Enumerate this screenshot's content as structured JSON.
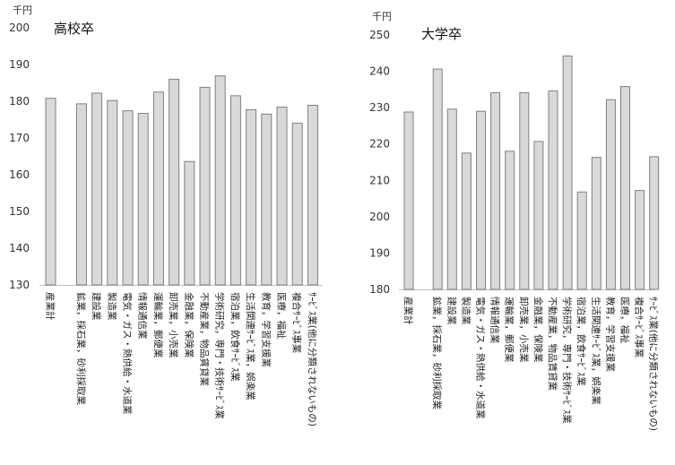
{
  "chart_data": [
    {
      "type": "bar",
      "title": "高校卒",
      "unit_label": "千円",
      "ylim": [
        130,
        200
      ],
      "yticks": [
        130,
        140,
        150,
        160,
        170,
        180,
        190,
        200
      ],
      "grid": false,
      "categories": [
        "産業計",
        "",
        "鉱業，採石業，砂利採取業",
        "建設業",
        "製造業",
        "電気・ガス・熱供給・水道業",
        "情報通信業",
        "運輸業，郵便業",
        "卸売業，小売業",
        "金融業，保険業",
        "不動産業，物品賃貸業",
        "学術研究，専門・技術ｻｰﾋﾞｽ業",
        "宿泊業，飲食ｻｰﾋﾞｽ業",
        "生活関連ｻｰﾋﾞｽ業，娯楽業",
        "教育，学習支援業",
        "医療，福祉",
        "複合ｻｰﾋﾞｽ事業",
        "ｻｰﾋﾞｽ業(他に分類されないもの)"
      ],
      "values": [
        180.8,
        null,
        179.3,
        182.2,
        180.2,
        177.4,
        176.7,
        182.5,
        186.0,
        163.6,
        183.8,
        186.9,
        181.5,
        177.7,
        176.5,
        178.4,
        174.0,
        178.9
      ]
    },
    {
      "type": "bar",
      "title": "大学卒",
      "unit_label": "千円",
      "ylim": [
        180,
        250
      ],
      "yticks": [
        180,
        190,
        200,
        210,
        220,
        230,
        240,
        250
      ],
      "grid": false,
      "categories": [
        "産業計",
        "",
        "鉱業，採石業，砂利採取業",
        "建設業",
        "製造業",
        "電気・ガス・熱供給・水道業",
        "情報通信業",
        "運輸業，郵便業",
        "卸売業，小売業",
        "金融業，保険業",
        "不動産業，物品賃貸業",
        "学術研究，専門・技術ｻｰﾋﾞｽ業",
        "宿泊業，飲食ｻｰﾋﾞｽ業",
        "生活関連ｻｰﾋﾞｽ業，娯楽業",
        "教育，学習支援業",
        "医療，福祉",
        "複合ｻｰﾋﾞｽ事業",
        "ｻｰﾋﾞｽ業(他に分類されないもの)"
      ],
      "values": [
        228.8,
        null,
        240.6,
        229.6,
        217.5,
        229.0,
        234.1,
        218.0,
        234.1,
        220.7,
        234.6,
        244.2,
        206.8,
        216.3,
        232.2,
        235.8,
        207.2,
        216.5
      ]
    }
  ]
}
